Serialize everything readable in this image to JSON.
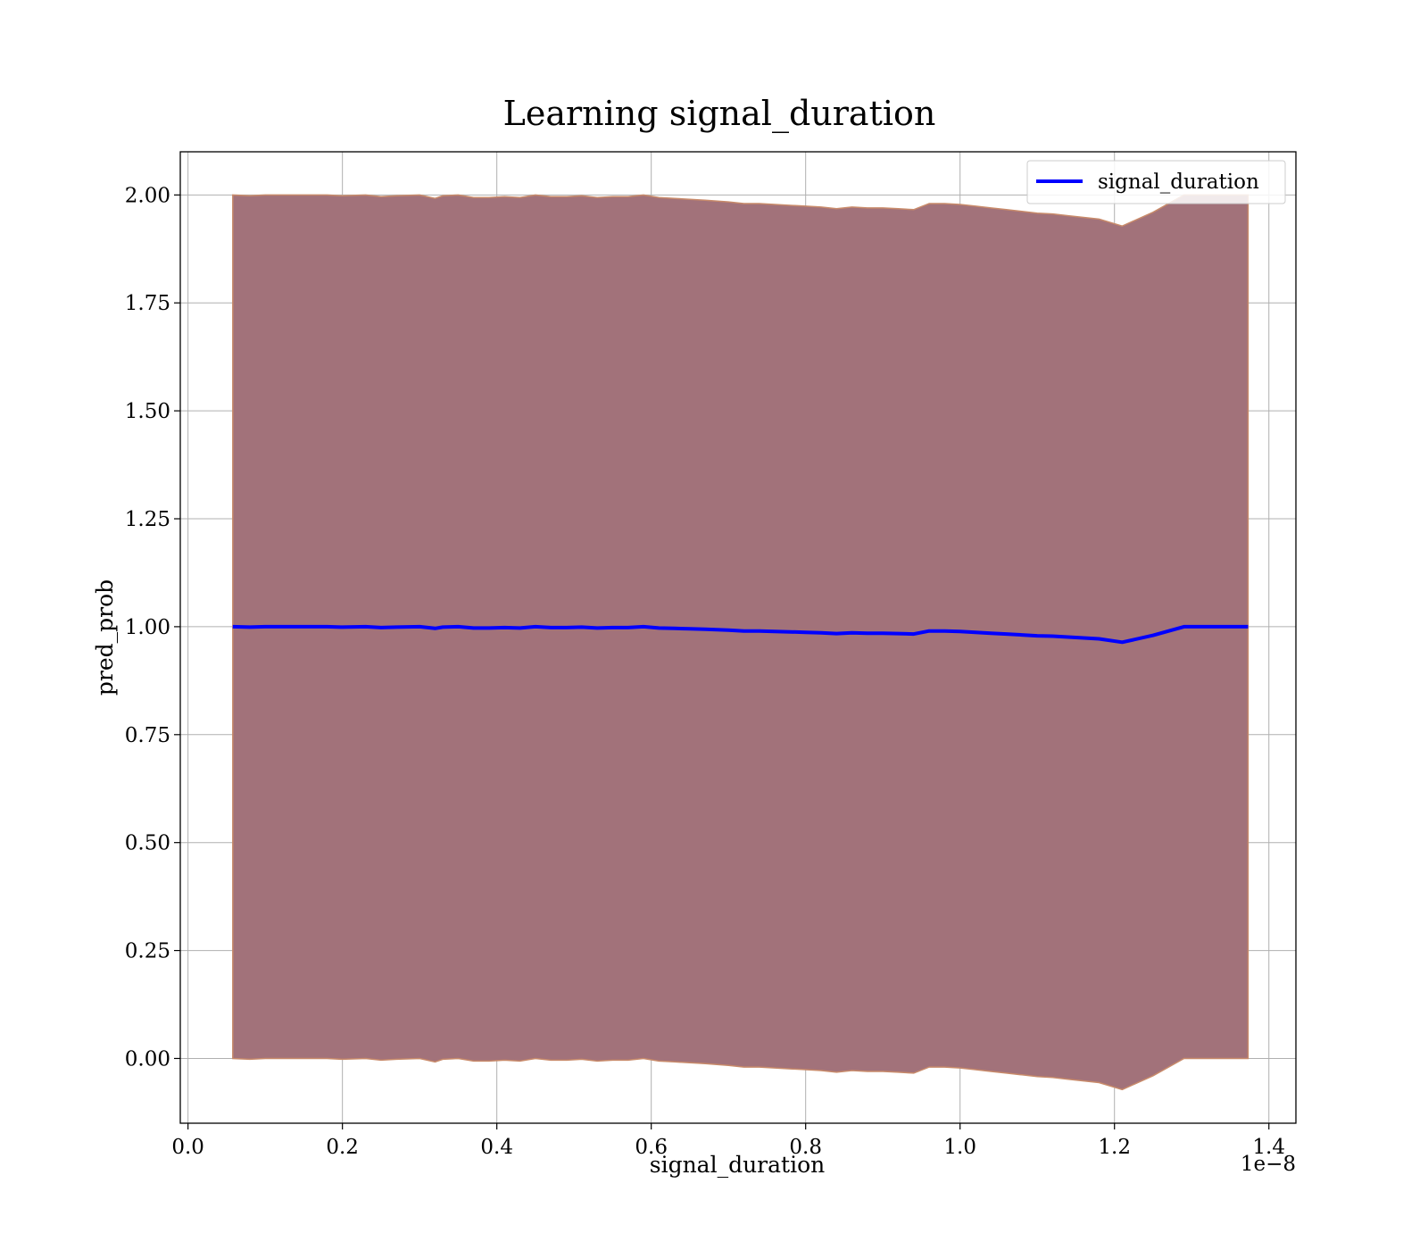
{
  "chart_data": {
    "type": "area",
    "title": "Learning signal_duration",
    "xlabel": "signal_duration",
    "ylabel": "pred_prob",
    "x_offset_label": "1e−8",
    "xlim": [
      -0.01,
      1.435
    ],
    "ylim": [
      -0.15,
      2.1
    ],
    "x_ticks": [
      0.0,
      0.2,
      0.4,
      0.6,
      0.8,
      1.0,
      1.2,
      1.4
    ],
    "x_tick_labels": [
      "0.0",
      "0.2",
      "0.4",
      "0.6",
      "0.8",
      "1.0",
      "1.2",
      "1.4"
    ],
    "y_ticks": [
      0.0,
      0.25,
      0.5,
      0.75,
      1.0,
      1.25,
      1.5,
      1.75,
      2.0
    ],
    "y_tick_labels": [
      "0.00",
      "0.25",
      "0.50",
      "0.75",
      "1.00",
      "1.25",
      "1.50",
      "1.75",
      "2.00"
    ],
    "grid": true,
    "legend_position": "top-right",
    "colors": {
      "line": "#0000ff",
      "band_fill": "#a2727a",
      "band_edge": "#c88a6a",
      "grid": "#b0b0b0",
      "axes": "#000000"
    },
    "series": [
      {
        "name": "signal_duration",
        "x": [
          0.058,
          0.08,
          0.1,
          0.12,
          0.15,
          0.18,
          0.2,
          0.23,
          0.25,
          0.27,
          0.3,
          0.32,
          0.33,
          0.35,
          0.37,
          0.39,
          0.41,
          0.43,
          0.45,
          0.47,
          0.49,
          0.51,
          0.53,
          0.55,
          0.57,
          0.59,
          0.61,
          0.63,
          0.65,
          0.67,
          0.7,
          0.72,
          0.74,
          0.76,
          0.78,
          0.8,
          0.82,
          0.84,
          0.86,
          0.88,
          0.9,
          0.92,
          0.94,
          0.96,
          0.98,
          1.0,
          1.02,
          1.04,
          1.06,
          1.08,
          1.1,
          1.12,
          1.14,
          1.16,
          1.18,
          1.21,
          1.25,
          1.29,
          1.33,
          1.373
        ],
        "y": [
          1.0,
          0.999,
          1.0,
          1.0,
          1.0,
          1.0,
          0.999,
          1.0,
          0.998,
          0.999,
          1.0,
          0.996,
          0.999,
          1.0,
          0.997,
          0.997,
          0.998,
          0.997,
          1.0,
          0.998,
          0.998,
          0.999,
          0.997,
          0.998,
          0.998,
          1.0,
          0.997,
          0.996,
          0.995,
          0.994,
          0.992,
          0.99,
          0.99,
          0.989,
          0.988,
          0.987,
          0.986,
          0.984,
          0.986,
          0.985,
          0.985,
          0.984,
          0.983,
          0.99,
          0.99,
          0.989,
          0.987,
          0.985,
          0.983,
          0.981,
          0.979,
          0.978,
          0.976,
          0.974,
          0.972,
          0.964,
          0.98,
          1.0,
          1.0,
          1.0
        ]
      }
    ],
    "band": {
      "upper_factor": 2,
      "lower": "2*y - upper (symmetric band from 0 to 2*y)"
    }
  }
}
